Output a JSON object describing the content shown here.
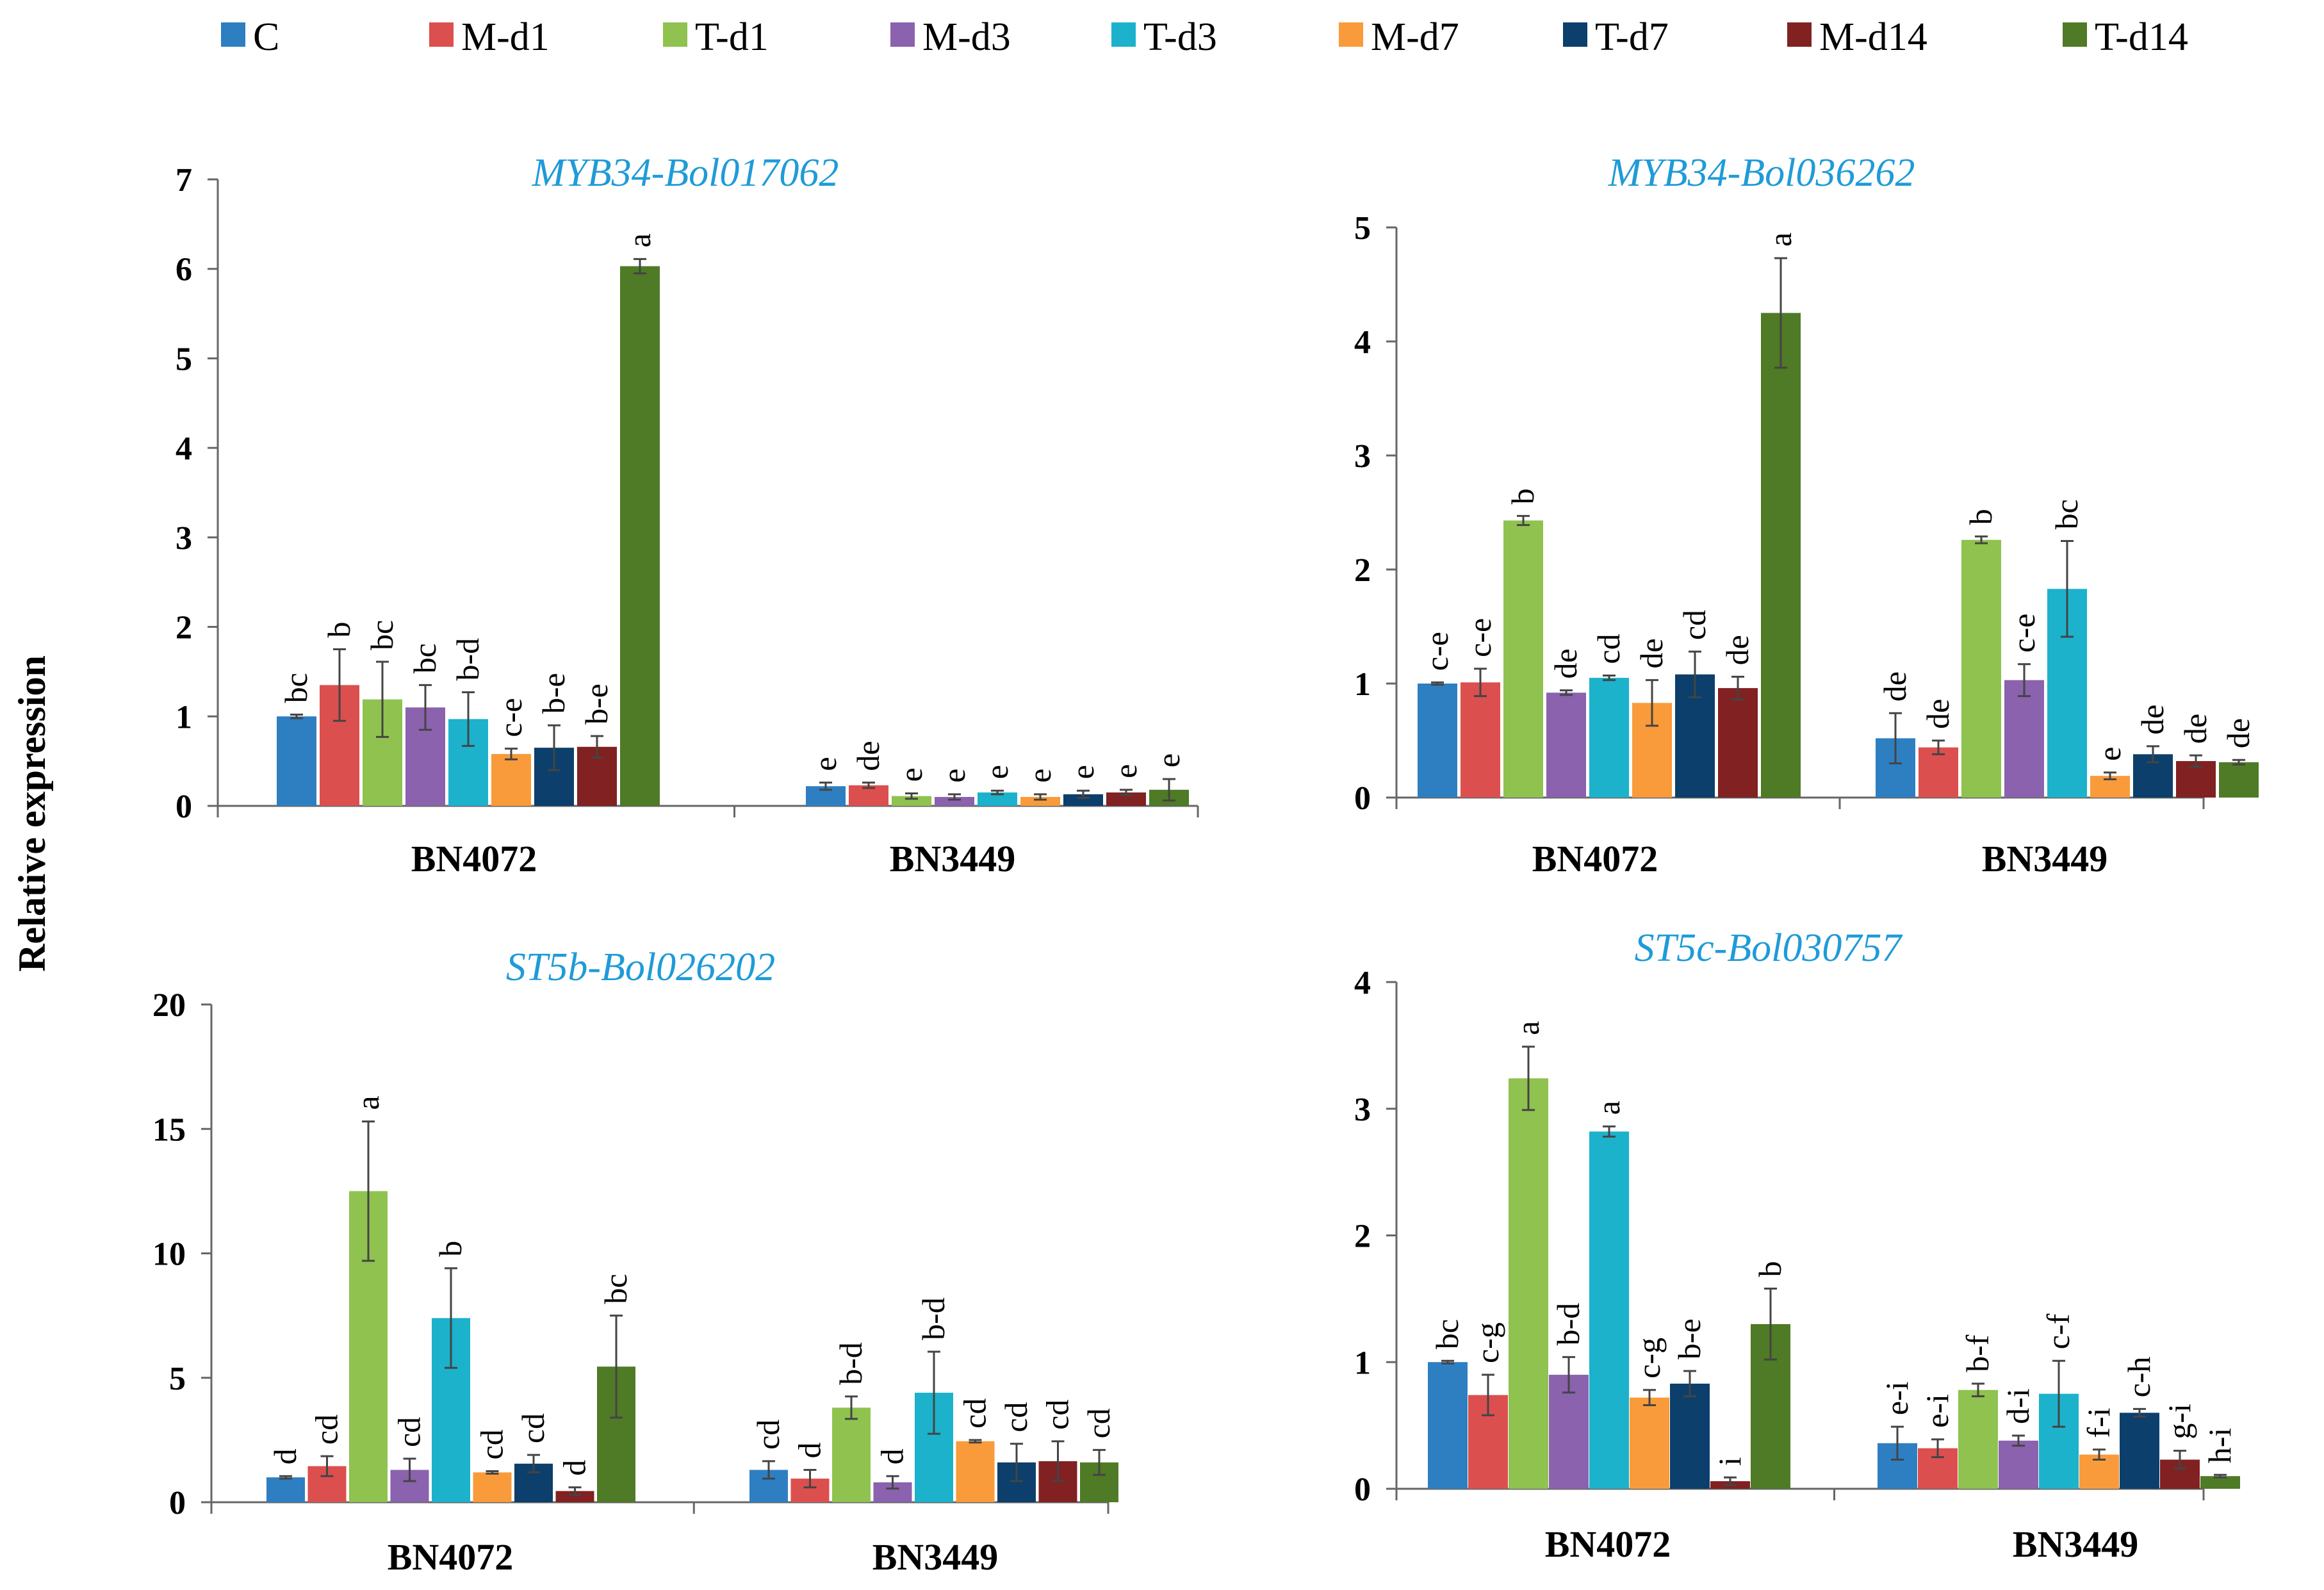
{
  "colors": {
    "C": "#2e7fc1",
    "M-d1": "#dc4f4f",
    "T-d1": "#8fc24f",
    "M-d3": "#8a62ad",
    "T-d3": "#1cb2cc",
    "M-d7": "#f99b3a",
    "T-d7": "#0c3f6b",
    "M-d14": "#812122",
    "T-d14": "#4f7a26"
  },
  "legend": [
    "C",
    "M-d1",
    "T-d1",
    "M-d3",
    "T-d3",
    "M-d7",
    "T-d7",
    "M-d14",
    "T-d14"
  ],
  "y_label": "Relative expression",
  "chart_data": [
    {
      "type": "bar",
      "title": "MYB34-Bol017062",
      "categories": [
        "BN4072",
        "BN3449"
      ],
      "ylim": [
        0,
        7
      ],
      "yticks": [
        0,
        1,
        2,
        3,
        4,
        5,
        6,
        7
      ],
      "series": [
        {
          "name": "C",
          "values": [
            1.0,
            0.22
          ],
          "errors": [
            0.02,
            0.04
          ],
          "letters": [
            "bc",
            "e"
          ]
        },
        {
          "name": "M-d1",
          "values": [
            1.35,
            0.23
          ],
          "errors": [
            0.4,
            0.03
          ],
          "letters": [
            "b",
            "de"
          ]
        },
        {
          "name": "T-d1",
          "values": [
            1.19,
            0.11
          ],
          "errors": [
            0.42,
            0.03
          ],
          "letters": [
            "bc",
            "e"
          ]
        },
        {
          "name": "M-d3",
          "values": [
            1.1,
            0.1
          ],
          "errors": [
            0.25,
            0.03
          ],
          "letters": [
            "bc",
            "e"
          ]
        },
        {
          "name": "T-d3",
          "values": [
            0.97,
            0.15
          ],
          "errors": [
            0.3,
            0.02
          ],
          "letters": [
            "b-d",
            "e"
          ]
        },
        {
          "name": "M-d7",
          "values": [
            0.58,
            0.1
          ],
          "errors": [
            0.06,
            0.03
          ],
          "letters": [
            "c-e",
            "e"
          ]
        },
        {
          "name": "T-d7",
          "values": [
            0.65,
            0.13
          ],
          "errors": [
            0.25,
            0.04
          ],
          "letters": [
            "b-e",
            "e"
          ]
        },
        {
          "name": "M-d14",
          "values": [
            0.66,
            0.15
          ],
          "errors": [
            0.12,
            0.03
          ],
          "letters": [
            "b-e",
            "e"
          ]
        },
        {
          "name": "T-d14",
          "values": [
            6.03,
            0.18
          ],
          "errors": [
            0.08,
            0.12
          ],
          "letters": [
            "a",
            "e"
          ]
        }
      ]
    },
    {
      "type": "bar",
      "title": "MYB34-Bol036262",
      "categories": [
        "BN4072",
        "BN3449"
      ],
      "ylim": [
        0,
        5
      ],
      "yticks": [
        0,
        1,
        2,
        3,
        4,
        5
      ],
      "series": [
        {
          "name": "C",
          "values": [
            1.0,
            0.52
          ],
          "errors": [
            0.01,
            0.22
          ],
          "letters": [
            "c-e",
            "de"
          ]
        },
        {
          "name": "M-d1",
          "values": [
            1.01,
            0.44
          ],
          "errors": [
            0.12,
            0.06
          ],
          "letters": [
            "c-e",
            "de"
          ]
        },
        {
          "name": "T-d1",
          "values": [
            2.43,
            2.26
          ],
          "errors": [
            0.04,
            0.03
          ],
          "letters": [
            "b",
            "b"
          ]
        },
        {
          "name": "M-d3",
          "values": [
            0.92,
            1.03
          ],
          "errors": [
            0.02,
            0.14
          ],
          "letters": [
            "de",
            "c-e"
          ]
        },
        {
          "name": "T-d3",
          "values": [
            1.05,
            1.83
          ],
          "errors": [
            0.02,
            0.42
          ],
          "letters": [
            "cd",
            "bc"
          ]
        },
        {
          "name": "M-d7",
          "values": [
            0.83,
            0.19
          ],
          "errors": [
            0.2,
            0.03
          ],
          "letters": [
            "de",
            "e"
          ]
        },
        {
          "name": "T-d7",
          "values": [
            1.08,
            0.38
          ],
          "errors": [
            0.2,
            0.07
          ],
          "letters": [
            "cd",
            "de"
          ]
        },
        {
          "name": "M-d14",
          "values": [
            0.96,
            0.32
          ],
          "errors": [
            0.1,
            0.05
          ],
          "letters": [
            "de",
            "de"
          ]
        },
        {
          "name": "T-d14",
          "values": [
            4.25,
            0.31
          ],
          "errors": [
            0.48,
            0.02
          ],
          "letters": [
            "a",
            "de"
          ]
        }
      ]
    },
    {
      "type": "bar",
      "title": "ST5b-Bol026202",
      "categories": [
        "BN4072",
        "BN3449"
      ],
      "ylim": [
        0,
        20
      ],
      "yticks": [
        0,
        5,
        10,
        15,
        20
      ],
      "series": [
        {
          "name": "C",
          "values": [
            1.0,
            1.3
          ],
          "errors": [
            0.05,
            0.35
          ],
          "letters": [
            "d",
            "cd"
          ]
        },
        {
          "name": "M-d1",
          "values": [
            1.45,
            0.95
          ],
          "errors": [
            0.4,
            0.35
          ],
          "letters": [
            "cd",
            "d"
          ]
        },
        {
          "name": "T-d1",
          "values": [
            12.5,
            3.8
          ],
          "errors": [
            2.8,
            0.45
          ],
          "letters": [
            "a",
            "b-d"
          ]
        },
        {
          "name": "M-d3",
          "values": [
            1.3,
            0.8
          ],
          "errors": [
            0.45,
            0.25
          ],
          "letters": [
            "cd",
            "d"
          ]
        },
        {
          "name": "T-d3",
          "values": [
            7.4,
            4.4
          ],
          "errors": [
            2.0,
            1.65
          ],
          "letters": [
            "b",
            "b-d"
          ]
        },
        {
          "name": "M-d7",
          "values": [
            1.2,
            2.45
          ],
          "errors": [
            0.05,
            0.05
          ],
          "letters": [
            "cd",
            "cd"
          ]
        },
        {
          "name": "T-d7",
          "values": [
            1.55,
            1.6
          ],
          "errors": [
            0.35,
            0.75
          ],
          "letters": [
            "cd",
            "cd"
          ]
        },
        {
          "name": "M-d14",
          "values": [
            0.45,
            1.65
          ],
          "errors": [
            0.15,
            0.8
          ],
          "letters": [
            "d",
            "cd"
          ]
        },
        {
          "name": "T-d14",
          "values": [
            5.45,
            1.6
          ],
          "errors": [
            2.05,
            0.5
          ],
          "letters": [
            "bc",
            "cd"
          ]
        }
      ]
    },
    {
      "type": "bar",
      "title": "ST5c-Bol030757",
      "categories": [
        "BN4072",
        "BN3449"
      ],
      "ylim": [
        0,
        4
      ],
      "yticks": [
        0,
        1,
        2,
        3,
        4
      ],
      "series": [
        {
          "name": "C",
          "values": [
            1.0,
            0.36
          ],
          "errors": [
            0.01,
            0.13
          ],
          "letters": [
            "bc",
            "e-i"
          ]
        },
        {
          "name": "M-d1",
          "values": [
            0.74,
            0.32
          ],
          "errors": [
            0.16,
            0.07
          ],
          "letters": [
            "c-g",
            "e-i"
          ]
        },
        {
          "name": "T-d1",
          "values": [
            3.24,
            0.78
          ],
          "errors": [
            0.25,
            0.05
          ],
          "letters": [
            "a",
            "b-f"
          ]
        },
        {
          "name": "M-d3",
          "values": [
            0.9,
            0.38
          ],
          "errors": [
            0.14,
            0.04
          ],
          "letters": [
            "b-d",
            "d-i"
          ]
        },
        {
          "name": "T-d3",
          "values": [
            2.82,
            0.75
          ],
          "errors": [
            0.04,
            0.26
          ],
          "letters": [
            "a",
            "c-f"
          ]
        },
        {
          "name": "M-d7",
          "values": [
            0.72,
            0.27
          ],
          "errors": [
            0.06,
            0.04
          ],
          "letters": [
            "c-g",
            "f-i"
          ]
        },
        {
          "name": "T-d7",
          "values": [
            0.83,
            0.6
          ],
          "errors": [
            0.1,
            0.03
          ],
          "letters": [
            "b-e",
            "c-h"
          ]
        },
        {
          "name": "M-d14",
          "values": [
            0.06,
            0.23
          ],
          "errors": [
            0.03,
            0.07
          ],
          "letters": [
            "i",
            "g-i"
          ]
        },
        {
          "name": "T-d14",
          "values": [
            1.3,
            0.1
          ],
          "errors": [
            0.28,
            0.01
          ],
          "letters": [
            "b",
            "h-i"
          ]
        }
      ]
    }
  ]
}
